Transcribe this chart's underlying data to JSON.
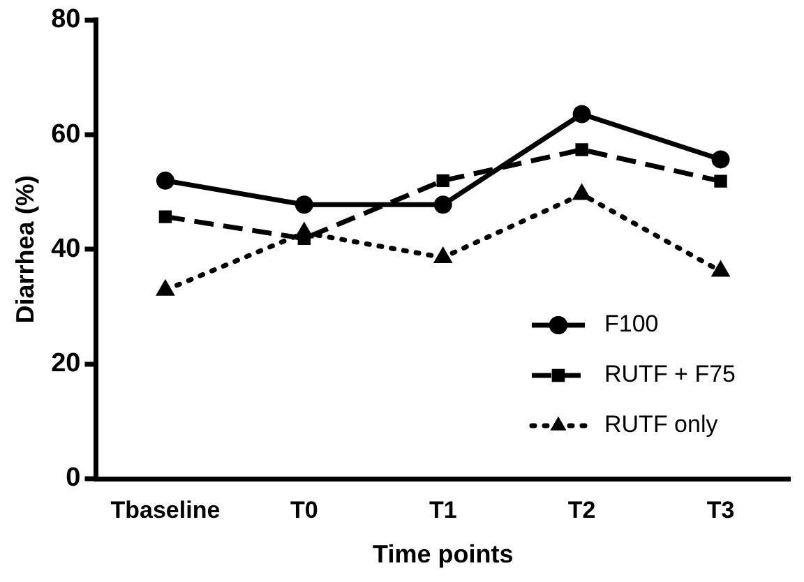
{
  "chart_data": {
    "type": "line",
    "xlabel": "Time points",
    "ylabel": "Diarrhea (%)",
    "categories": [
      "Tbaseline",
      "T0",
      "T1",
      "T2",
      "T3"
    ],
    "series": [
      {
        "name": "F100",
        "color": "#000000",
        "marker": "circle",
        "line_style": "solid",
        "values": [
          52.0,
          47.8,
          47.8,
          63.6,
          55.7
        ]
      },
      {
        "name": "RUTF + F75",
        "color": "#000000",
        "marker": "square",
        "line_style": "dashed",
        "values": [
          45.7,
          41.9,
          52.0,
          57.4,
          51.9
        ]
      },
      {
        "name": "RUTF only",
        "color": "#000000",
        "marker": "triangle",
        "line_style": "dotted",
        "values": [
          32.9,
          42.9,
          38.6,
          49.6,
          36.2
        ]
      }
    ],
    "ylim": [
      0,
      80
    ],
    "yticks": [
      0,
      20,
      40,
      60,
      80
    ],
    "grid": false,
    "legend": "bottom right"
  }
}
